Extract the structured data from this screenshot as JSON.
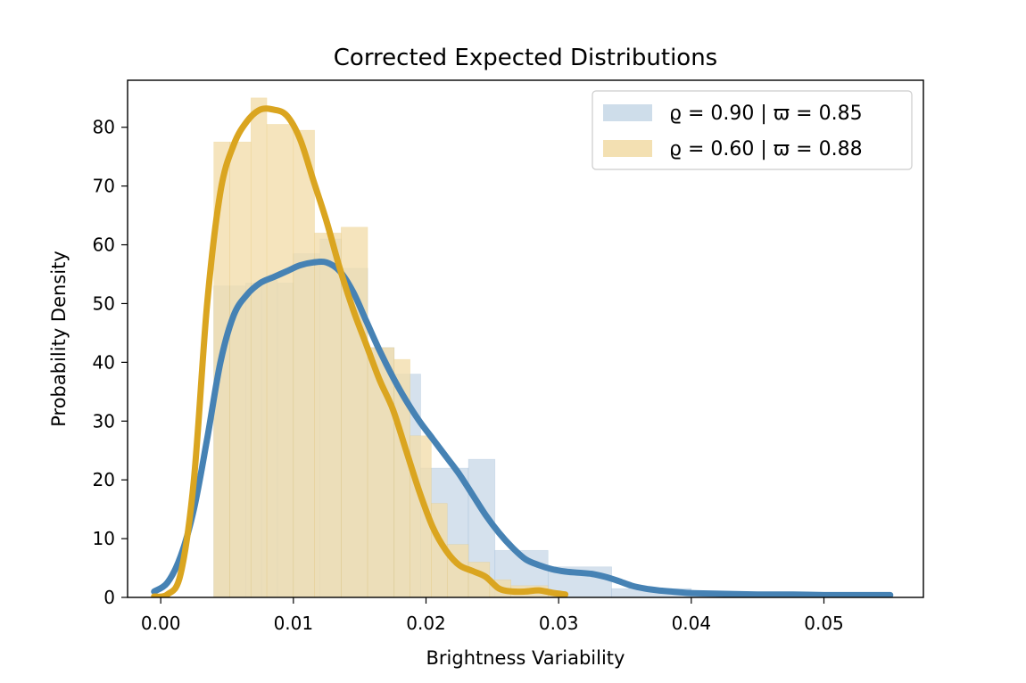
{
  "chart_data": {
    "type": "bar",
    "title": "Corrected Expected Distributions",
    "xlabel": "Brightness Variability",
    "ylabel": "Probability Density",
    "xlim": [
      -0.0025,
      0.0575
    ],
    "ylim": [
      0,
      88
    ],
    "xticks": [
      0.0,
      0.01,
      0.02,
      0.03,
      0.04,
      0.05
    ],
    "xtick_labels": [
      "0.00",
      "0.01",
      "0.02",
      "0.03",
      "0.04",
      "0.05"
    ],
    "yticks": [
      0,
      10,
      20,
      30,
      40,
      50,
      60,
      70,
      80
    ],
    "ytick_labels": [
      "0",
      "10",
      "20",
      "30",
      "40",
      "50",
      "60",
      "70",
      "80"
    ],
    "grid": false,
    "legend_position": "top-right",
    "series": [
      {
        "name": "ϱ = 0.90 | ϖ = 0.85",
        "hist_color": "#c9d9e8",
        "line_color": "#4682b4",
        "bins": [
          {
            "x0": 0.004,
            "x1": 0.0052,
            "value": 53.0
          },
          {
            "x0": 0.0052,
            "x1": 0.0064,
            "value": 53.0
          },
          {
            "x0": 0.0064,
            "x1": 0.0076,
            "value": 53.5
          },
          {
            "x0": 0.0076,
            "x1": 0.0088,
            "value": 54.0
          },
          {
            "x0": 0.0088,
            "x1": 0.01,
            "value": 53.5
          },
          {
            "x0": 0.01,
            "x1": 0.012,
            "value": 58.5
          },
          {
            "x0": 0.012,
            "x1": 0.0136,
            "value": 61.0
          },
          {
            "x0": 0.0136,
            "x1": 0.0156,
            "value": 56.0
          },
          {
            "x0": 0.0156,
            "x1": 0.0176,
            "value": 42.5
          },
          {
            "x0": 0.0176,
            "x1": 0.0196,
            "value": 38.0
          },
          {
            "x0": 0.0196,
            "x1": 0.0232,
            "value": 22.0
          },
          {
            "x0": 0.0232,
            "x1": 0.0252,
            "value": 23.5
          },
          {
            "x0": 0.0252,
            "x1": 0.0292,
            "value": 8.0
          },
          {
            "x0": 0.0292,
            "x1": 0.034,
            "value": 5.2
          },
          {
            "x0": 0.034,
            "x1": 0.04,
            "value": 1.5
          },
          {
            "x0": 0.04,
            "x1": 0.055,
            "value": 0.6
          }
        ],
        "kde_x": [
          -0.0005,
          0.0005,
          0.0015,
          0.0025,
          0.0035,
          0.0045,
          0.0055,
          0.0065,
          0.0075,
          0.0085,
          0.0095,
          0.0105,
          0.0115,
          0.0125,
          0.0135,
          0.0145,
          0.0155,
          0.0165,
          0.0175,
          0.0185,
          0.0195,
          0.0205,
          0.0215,
          0.0225,
          0.0235,
          0.0245,
          0.0255,
          0.0265,
          0.0275,
          0.0285,
          0.0295,
          0.0305,
          0.0315,
          0.0325,
          0.0335,
          0.0345,
          0.0355,
          0.0365,
          0.0375,
          0.0385,
          0.0395,
          0.0405,
          0.0425,
          0.045,
          0.0475,
          0.05,
          0.0525,
          0.055
        ],
        "kde_y": [
          1.0,
          2.5,
          7.0,
          15.0,
          27.0,
          40.0,
          48.0,
          51.5,
          53.5,
          54.5,
          55.5,
          56.5,
          57.0,
          57.0,
          55.5,
          52.0,
          47.0,
          42.0,
          37.5,
          33.5,
          30.0,
          27.0,
          24.0,
          21.0,
          17.5,
          14.0,
          11.0,
          8.5,
          6.5,
          5.5,
          4.8,
          4.4,
          4.2,
          4.0,
          3.5,
          2.8,
          2.0,
          1.5,
          1.2,
          1.0,
          0.8,
          0.7,
          0.6,
          0.5,
          0.5,
          0.4,
          0.4,
          0.4
        ]
      },
      {
        "name": "ϱ = 0.60 | ϖ = 0.88",
        "hist_color": "#f2ddaa",
        "line_color": "#daa520",
        "bins": [
          {
            "x0": 0.004,
            "x1": 0.0052,
            "value": 77.5
          },
          {
            "x0": 0.0052,
            "x1": 0.0068,
            "value": 77.5
          },
          {
            "x0": 0.0068,
            "x1": 0.008,
            "value": 85.0
          },
          {
            "x0": 0.008,
            "x1": 0.01,
            "value": 80.5
          },
          {
            "x0": 0.01,
            "x1": 0.0116,
            "value": 79.5
          },
          {
            "x0": 0.0116,
            "x1": 0.0136,
            "value": 62.0
          },
          {
            "x0": 0.0136,
            "x1": 0.0156,
            "value": 63.0
          },
          {
            "x0": 0.0156,
            "x1": 0.0176,
            "value": 42.5
          },
          {
            "x0": 0.0176,
            "x1": 0.0188,
            "value": 40.5
          },
          {
            "x0": 0.0188,
            "x1": 0.0204,
            "value": 27.5
          },
          {
            "x0": 0.0204,
            "x1": 0.0216,
            "value": 16.0
          },
          {
            "x0": 0.0216,
            "x1": 0.0232,
            "value": 9.0
          },
          {
            "x0": 0.0232,
            "x1": 0.0248,
            "value": 6.0
          },
          {
            "x0": 0.0248,
            "x1": 0.0264,
            "value": 3.0
          },
          {
            "x0": 0.0264,
            "x1": 0.0292,
            "value": 2.0
          },
          {
            "x0": 0.0292,
            "x1": 0.0304,
            "value": 1.0
          }
        ],
        "kde_x": [
          -0.0005,
          0.0005,
          0.0015,
          0.0025,
          0.0035,
          0.0045,
          0.0055,
          0.0065,
          0.0075,
          0.0085,
          0.0095,
          0.0105,
          0.0115,
          0.0125,
          0.0135,
          0.0145,
          0.0155,
          0.0165,
          0.0175,
          0.0185,
          0.0195,
          0.0205,
          0.0215,
          0.0225,
          0.0235,
          0.0245,
          0.0255,
          0.0265,
          0.0275,
          0.0285,
          0.0295,
          0.0305
        ],
        "kde_y": [
          0.0,
          0.5,
          4.0,
          20.0,
          50.0,
          69.0,
          77.0,
          81.0,
          83.0,
          83.0,
          82.0,
          78.0,
          71.0,
          64.0,
          56.0,
          49.0,
          43.0,
          37.0,
          32.0,
          25.0,
          18.0,
          12.0,
          8.0,
          5.5,
          4.5,
          3.5,
          1.5,
          1.0,
          1.0,
          1.2,
          0.8,
          0.5
        ]
      }
    ]
  }
}
